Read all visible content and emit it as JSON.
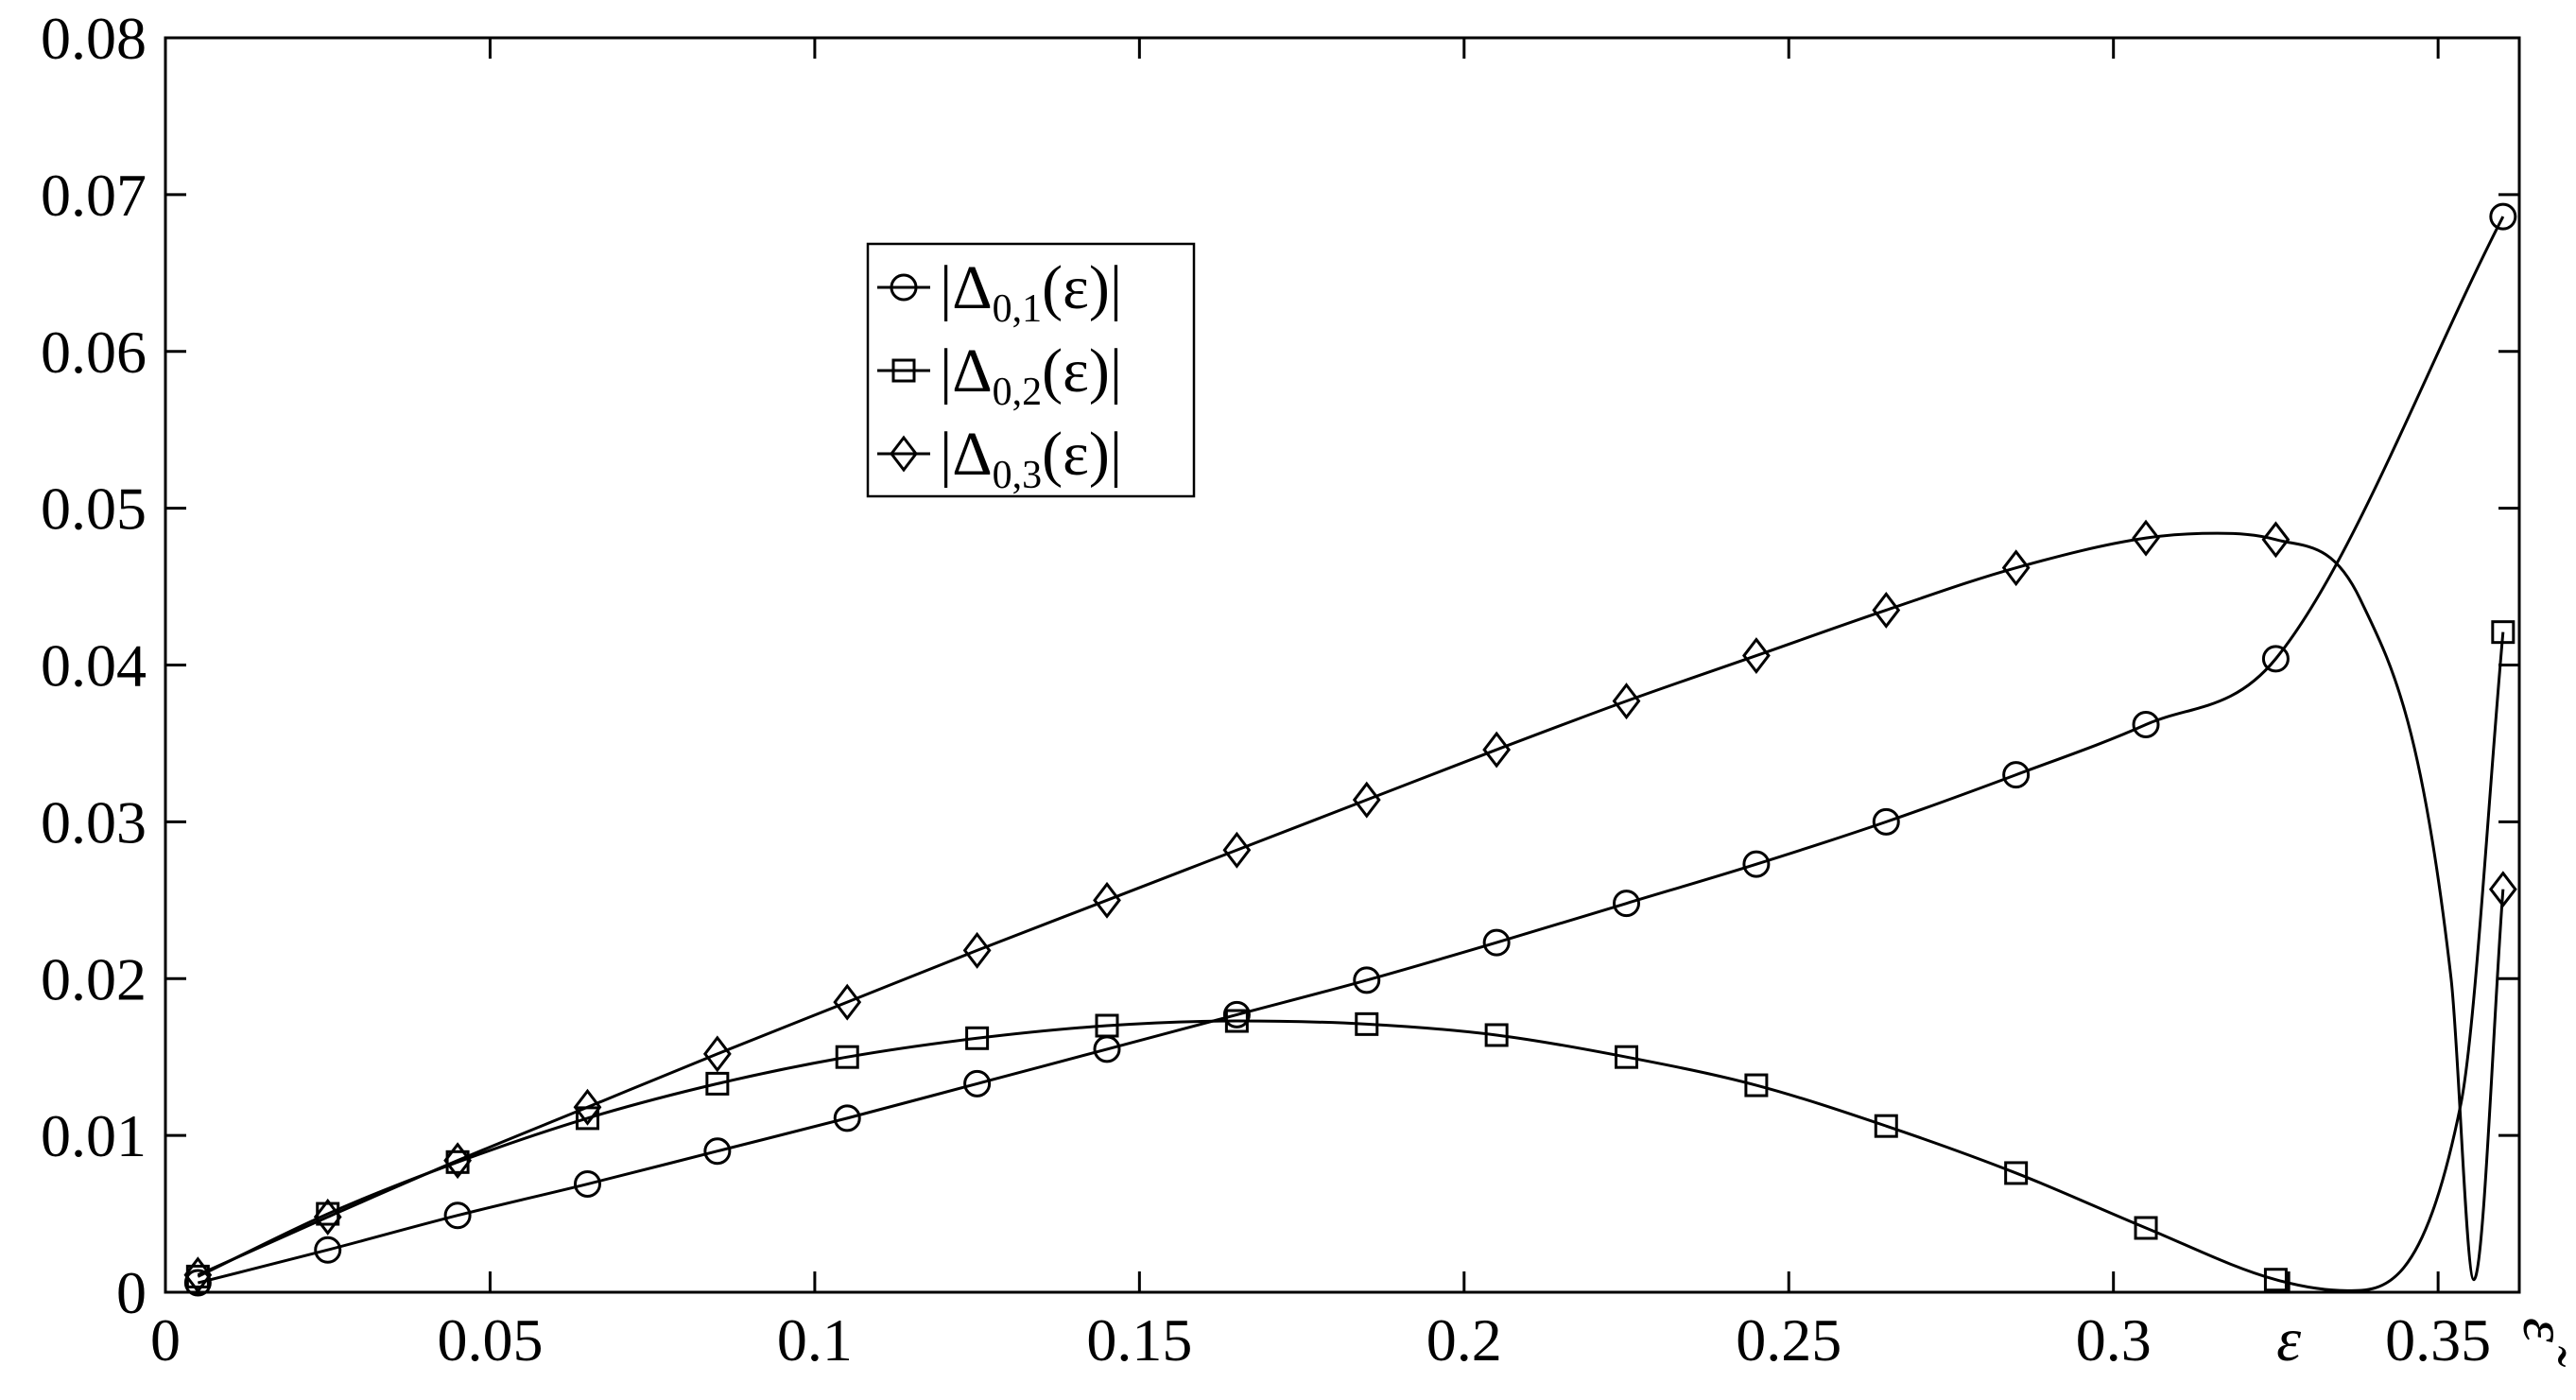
{
  "chart_data": {
    "type": "line",
    "x_ticks": [
      "0",
      "0.05",
      "0.1",
      "0.15",
      "0.2",
      "0.25",
      "0.3",
      "0.35"
    ],
    "y_ticks": [
      "0",
      "0.01",
      "0.02",
      "0.03",
      "0.04",
      "0.05",
      "0.06",
      "0.07",
      "0.08"
    ],
    "xlim": [
      0,
      0.3625
    ],
    "ylim": [
      0,
      0.08
    ],
    "x_annotations": [
      {
        "text": "ε",
        "x": 0.327
      },
      {
        "text": "ε̃",
        "x": 0.3635
      }
    ],
    "legend_position": "upper-center",
    "grid": false,
    "series": [
      {
        "name": "|Δ0,1(ε)|",
        "label_main": "|Δ",
        "label_sub": "0,1",
        "label_tail": "(ε)|",
        "marker": "circle",
        "x": [
          0.005,
          0.025,
          0.045,
          0.065,
          0.085,
          0.105,
          0.125,
          0.145,
          0.165,
          0.185,
          0.205,
          0.225,
          0.245,
          0.265,
          0.285,
          0.305,
          0.325,
          0.36
        ],
        "y": [
          0.0006,
          0.0027,
          0.0049,
          0.0069,
          0.009,
          0.0111,
          0.0133,
          0.0155,
          0.0177,
          0.0199,
          0.0223,
          0.0248,
          0.0273,
          0.03,
          0.033,
          0.0362,
          0.0404,
          0.0686
        ]
      },
      {
        "name": "|Δ0,2(ε)|",
        "label_main": "|Δ",
        "label_sub": "0,2",
        "label_tail": "(ε)|",
        "marker": "square",
        "x": [
          0.005,
          0.025,
          0.045,
          0.065,
          0.085,
          0.105,
          0.125,
          0.145,
          0.165,
          0.185,
          0.205,
          0.225,
          0.245,
          0.265,
          0.285,
          0.305,
          0.325,
          0.36
        ],
        "y": [
          0.001,
          0.005,
          0.0083,
          0.0111,
          0.0133,
          0.015,
          0.0162,
          0.017,
          0.0173,
          0.0171,
          0.0164,
          0.015,
          0.0132,
          0.0106,
          0.0076,
          0.0041,
          0.0008,
          0.0421
        ]
      },
      {
        "name": "|Δ0,3(ε)|",
        "label_main": "|Δ",
        "label_sub": "0,3",
        "label_tail": "(ε)|",
        "marker": "diamond",
        "x": [
          0.005,
          0.025,
          0.045,
          0.065,
          0.085,
          0.105,
          0.125,
          0.145,
          0.165,
          0.185,
          0.205,
          0.225,
          0.245,
          0.265,
          0.285,
          0.305,
          0.325,
          0.36
        ],
        "y": [
          0.0011,
          0.0048,
          0.0084,
          0.0118,
          0.0152,
          0.0185,
          0.0218,
          0.025,
          0.0282,
          0.0314,
          0.0346,
          0.0377,
          0.0406,
          0.0435,
          0.0462,
          0.0481,
          0.048,
          0.0257
        ]
      }
    ]
  }
}
